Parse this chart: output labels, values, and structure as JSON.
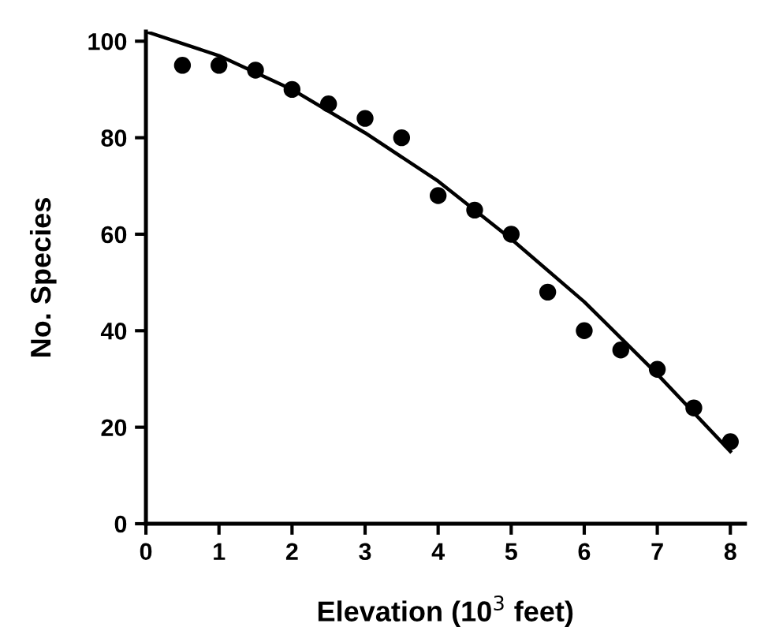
{
  "chart_data": {
    "type": "scatter",
    "xlabel": "Elevation (10$^{3}$ feet)",
    "ylabel": "No. Species",
    "xlim": [
      0,
      8.2
    ],
    "ylim": [
      0,
      102
    ],
    "xticks": [
      0,
      1,
      2,
      3,
      4,
      5,
      6,
      7,
      8
    ],
    "yticks": [
      0,
      20,
      40,
      60,
      80,
      100
    ],
    "grid": false,
    "series": [
      {
        "color": "#000000",
        "marker": "circle",
        "x": [
          0.5,
          1,
          1.5,
          2,
          2.5,
          3,
          3.5,
          4,
          4.5,
          5,
          5.5,
          6,
          6.5,
          7,
          7.5,
          8
        ],
        "values": [
          95,
          95,
          94,
          90,
          87,
          84,
          80,
          68,
          65,
          60,
          48,
          40,
          36,
          32,
          24,
          17
        ]
      },
      {
        "type": "line",
        "color": "#000000",
        "line_style": "solid",
        "x": [
          0,
          1,
          2,
          3,
          4,
          5,
          6,
          7,
          8
        ],
        "values": [
          102,
          97,
          90,
          81,
          71,
          59,
          46,
          31,
          15
        ]
      }
    ]
  }
}
